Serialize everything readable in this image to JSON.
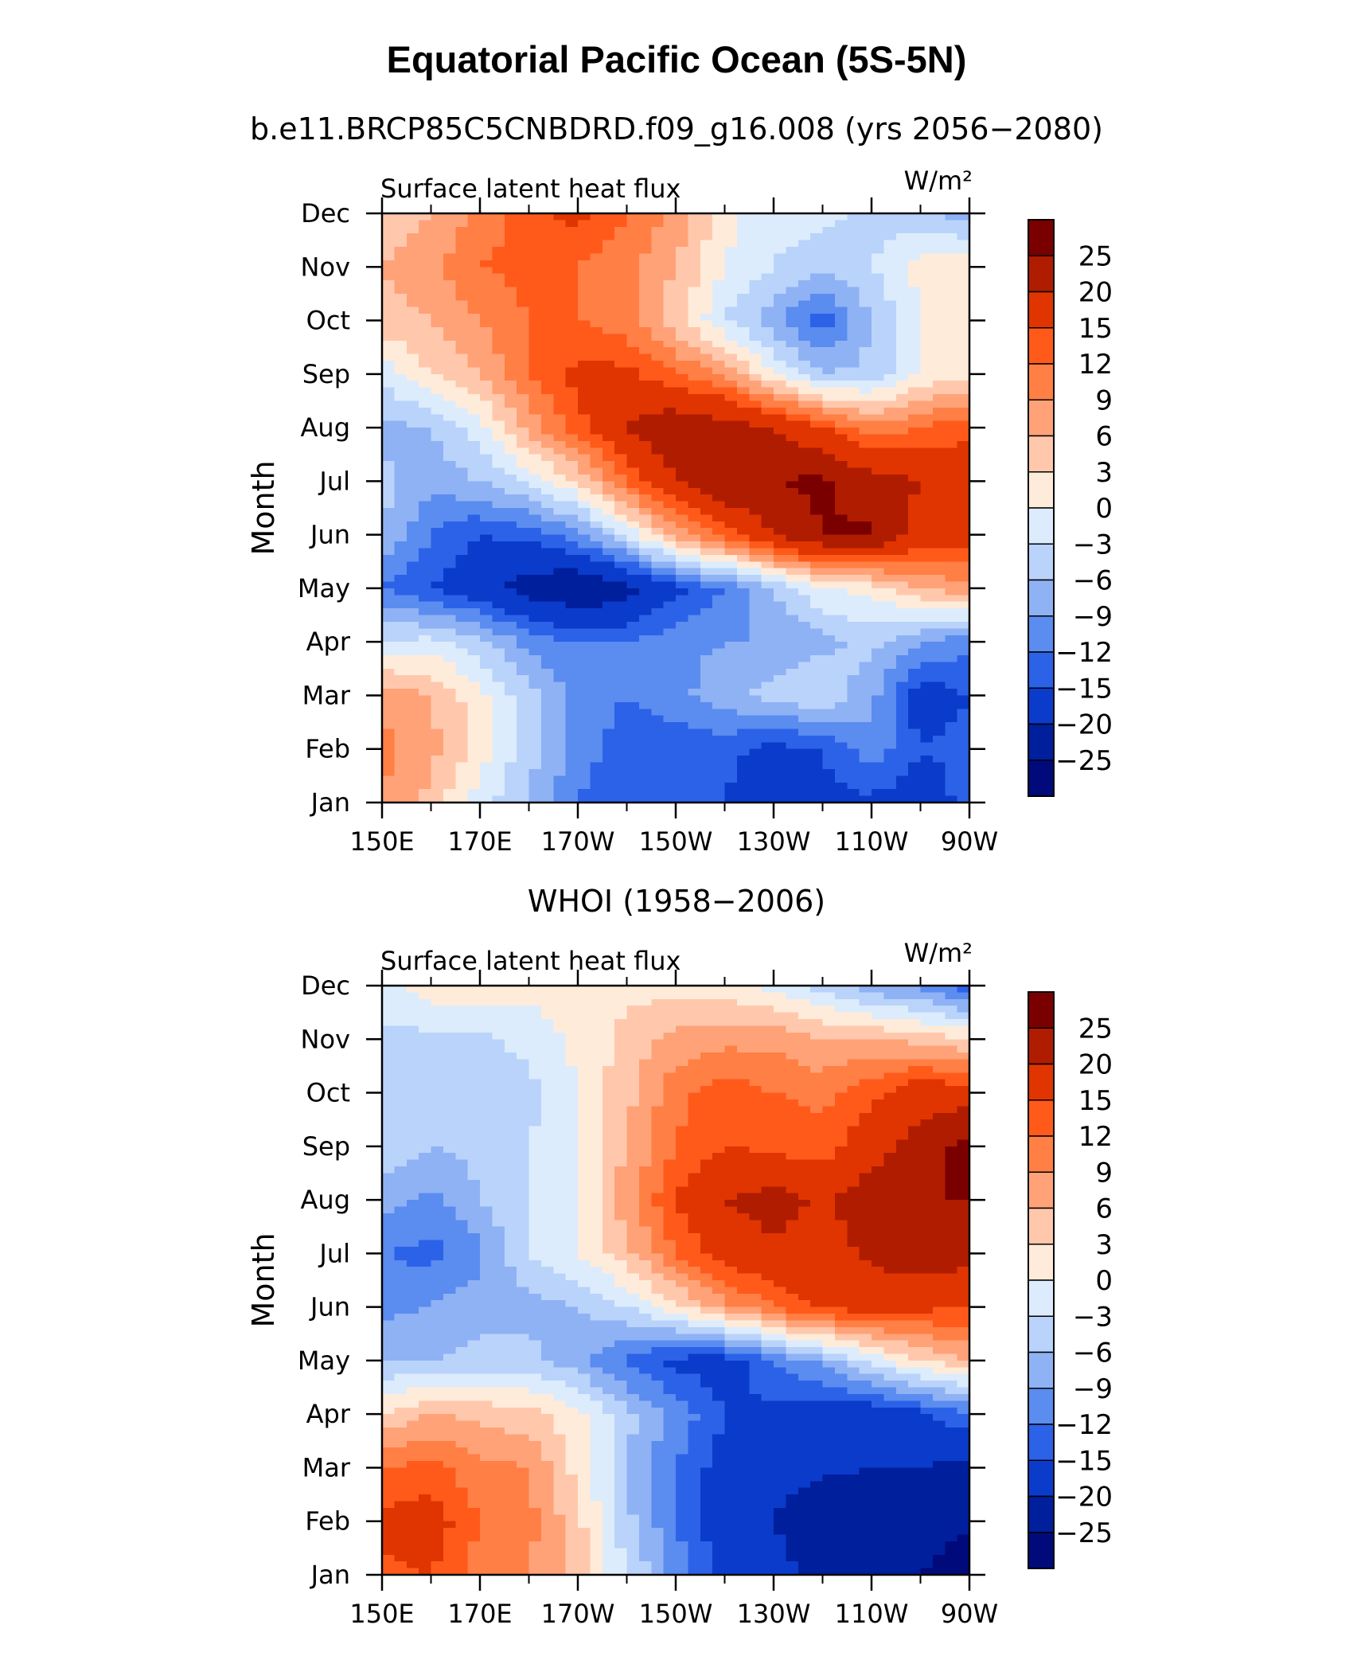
{
  "figure": {
    "title": "Equatorial Pacific Ocean (5S-5N)"
  },
  "colorbar": {
    "levels": [
      25,
      20,
      15,
      12,
      9,
      6,
      3,
      0,
      -3,
      -6,
      -9,
      -12,
      -15,
      -20,
      -25
    ],
    "tick_labels": [
      "25",
      "20",
      "15",
      "12",
      "9",
      "6",
      "3",
      "0",
      "−3",
      "−6",
      "−9",
      "−12",
      "−15",
      "−20",
      "−25"
    ],
    "colors": [
      "#7a0000",
      "#b01c00",
      "#e03500",
      "#ff5a1a",
      "#ff7f45",
      "#ffa278",
      "#ffc8ac",
      "#ffebd9",
      "#dcecfc",
      "#b9d3fb",
      "#8fb2f5",
      "#5b8cef",
      "#2c62e8",
      "#0a3bcb",
      "#001f9c",
      "#000a7a"
    ]
  },
  "chart_data": [
    {
      "type": "heatmap",
      "title": "b.e11.BRCP85C5CNBDRD.f09_g16.008 (yrs 2056−2080)",
      "left_label": "Surface latent heat flux",
      "right_label": "W/m²",
      "xlabel": "",
      "ylabel": "Month",
      "x": [
        150,
        160,
        170,
        180,
        190,
        200,
        210,
        220,
        230,
        240,
        250,
        260,
        270
      ],
      "xlim": [
        150,
        270
      ],
      "x_tick_values": [
        150,
        170,
        190,
        210,
        230,
        250,
        270
      ],
      "x_tick_labels": [
        "150E",
        "170E",
        "170W",
        "150W",
        "130W",
        "110W",
        "90W"
      ],
      "y_tick_labels": [
        "Jan",
        "Feb",
        "Mar",
        "Apr",
        "May",
        "Jun",
        "Jul",
        "Aug",
        "Sep",
        "Oct",
        "Nov",
        "Dec"
      ],
      "z": [
        [
          9,
          5,
          -2,
          -6,
          -12,
          -15,
          -15,
          -15,
          -18,
          -16,
          -16,
          -17,
          -14
        ],
        [
          10,
          7,
          2,
          -5,
          -10,
          -14,
          -14,
          -14,
          -16,
          -15,
          -10,
          -15,
          -14
        ],
        [
          8,
          6,
          1,
          -5,
          -10,
          -12,
          -10,
          -7,
          -5,
          -3,
          -8,
          -17,
          -15
        ],
        [
          -3,
          -2,
          -5,
          -10,
          -12,
          -12,
          -10,
          -9,
          -9,
          -7,
          -5,
          -9,
          -11
        ],
        [
          -12,
          -15,
          -18,
          -22,
          -25,
          -22,
          -16,
          -12,
          -6,
          0,
          1,
          6,
          8
        ],
        [
          -6,
          -12,
          -15,
          -14,
          -10,
          -2,
          7,
          13,
          20,
          25,
          26,
          18,
          17
        ],
        [
          -5,
          -8,
          -6,
          -2,
          3,
          12,
          20,
          25,
          25,
          26,
          22,
          20,
          18
        ],
        [
          -7,
          -6,
          -1,
          7,
          14,
          20,
          24,
          22,
          20,
          15,
          10,
          12,
          14
        ],
        [
          -2,
          3,
          6,
          12,
          16,
          16,
          12,
          9,
          0,
          -6,
          -5,
          0,
          2
        ],
        [
          5,
          6,
          9,
          12,
          12,
          10,
          4,
          -3,
          -8,
          -14,
          -6,
          0,
          3
        ],
        [
          6,
          8,
          12,
          13,
          12,
          10,
          6,
          0,
          -3,
          -5,
          -3,
          1,
          3
        ],
        [
          4,
          6,
          10,
          14,
          16,
          12,
          8,
          1,
          -2,
          -2,
          -4,
          -5,
          -8
        ]
      ]
    },
    {
      "type": "heatmap",
      "title": "WHOI (1958−2006)",
      "left_label": "Surface latent heat flux",
      "right_label": "W/m²",
      "xlabel": "",
      "ylabel": "Month",
      "x": [
        150,
        160,
        170,
        180,
        190,
        200,
        210,
        220,
        230,
        240,
        250,
        260,
        270
      ],
      "xlim": [
        150,
        270
      ],
      "x_tick_values": [
        150,
        170,
        190,
        210,
        230,
        250,
        270
      ],
      "x_tick_labels": [
        "150E",
        "170E",
        "170W",
        "150W",
        "130W",
        "110W",
        "90W"
      ],
      "y_tick_labels": [
        "Jan",
        "Feb",
        "Mar",
        "Apr",
        "May",
        "Jun",
        "Jul",
        "Aug",
        "Sep",
        "Oct",
        "Nov",
        "Dec"
      ],
      "z": [
        [
          14,
          15,
          10,
          9,
          5,
          -3,
          -10,
          -16,
          -18,
          -22,
          -22,
          -25,
          -28
        ],
        [
          16,
          17,
          12,
          10,
          4,
          -5,
          -12,
          -18,
          -20,
          -24,
          -24,
          -23,
          -24
        ],
        [
          12,
          13,
          10,
          9,
          2,
          -6,
          -12,
          -17,
          -18,
          -19,
          -20,
          -20,
          -21
        ],
        [
          3,
          6,
          5,
          4,
          1,
          -5,
          -10,
          -15,
          -16,
          -17,
          -18,
          -16,
          -12
        ],
        [
          -6,
          -6,
          -5,
          -5,
          -8,
          -13,
          -16,
          -17,
          -12,
          -8,
          -2,
          3,
          6
        ],
        [
          -10,
          -9,
          -7,
          -7,
          -6,
          -3,
          2,
          8,
          12,
          16,
          17,
          16,
          15
        ],
        [
          -12,
          -13,
          -10,
          -3,
          0,
          5,
          12,
          17,
          19,
          18,
          21,
          23,
          22
        ],
        [
          -8,
          -10,
          -6,
          -3,
          0,
          8,
          15,
          20,
          22,
          19,
          23,
          25,
          25
        ],
        [
          -4,
          -6,
          -5,
          -3,
          0,
          6,
          12,
          15,
          14,
          13,
          18,
          22,
          27
        ],
        [
          -5,
          -3,
          -4,
          -4,
          0,
          5,
          11,
          14,
          12,
          11,
          14,
          18,
          17
        ],
        [
          -4,
          -4,
          -4,
          -2,
          1,
          4,
          7,
          8,
          8,
          6,
          6,
          5,
          3
        ],
        [
          -1,
          2,
          2,
          1,
          2,
          2,
          2,
          1,
          -1,
          -4,
          -8,
          -10,
          -14
        ]
      ]
    }
  ]
}
